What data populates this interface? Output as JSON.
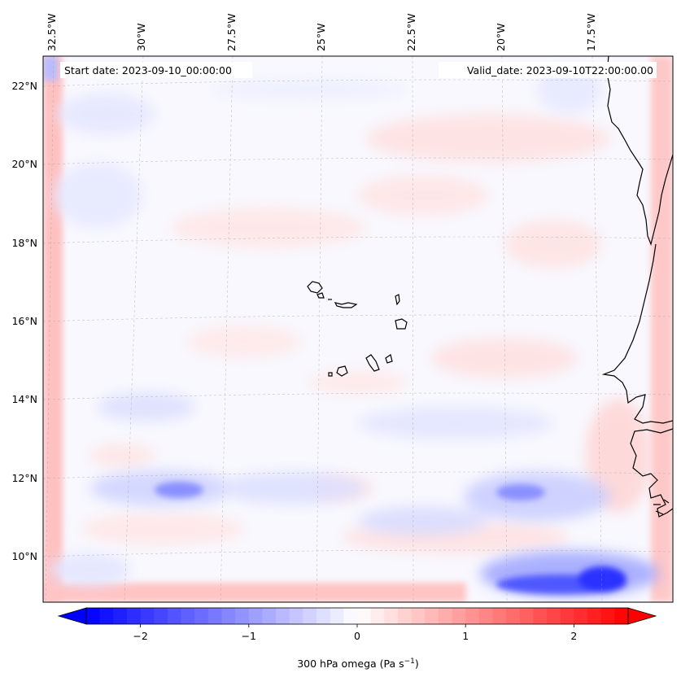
{
  "map": {
    "start_date_label": "Start date: 2023-09-10_00:00:00",
    "valid_date_label": "Valid_date: 2023-09-10T22:00:00.00",
    "lon_labels": [
      "32.5°W",
      "30°W",
      "27.5°W",
      "25°W",
      "22.5°W",
      "20°W",
      "17.5°W"
    ],
    "lat_labels": [
      "22°N",
      "20°N",
      "18°N",
      "16°N",
      "14°N",
      "12°N",
      "10°N"
    ],
    "region": {
      "lon_range": [
        -32.8,
        -15.8
      ],
      "lat_range": [
        8.9,
        22.7
      ]
    }
  },
  "colorbar": {
    "label_main": "300 hPa omega (Pa s",
    "label_sup": "−1",
    "label_end": ")",
    "ticks": [
      "−2",
      "−1",
      "0",
      "1",
      "2"
    ],
    "tick_values": [
      -2,
      -1,
      0,
      1,
      2
    ],
    "range": [
      -2.5,
      2.5
    ],
    "extend": "both",
    "colors": {
      "negative": "#0000ff",
      "zero": "#ffffff",
      "positive": "#ff0000"
    }
  }
}
